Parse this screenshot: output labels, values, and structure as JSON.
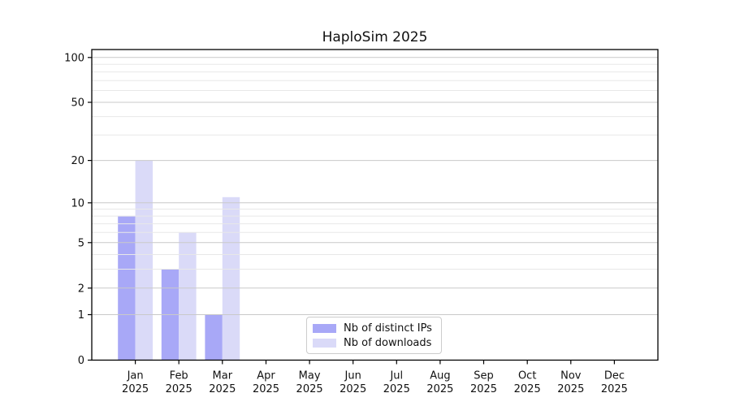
{
  "chart_data": {
    "type": "bar",
    "title": "HaploSim 2025",
    "categories": [
      "Jan",
      "Feb",
      "Mar",
      "Apr",
      "May",
      "Jun",
      "Jul",
      "Aug",
      "Sep",
      "Oct",
      "Nov",
      "Dec"
    ],
    "year": "2025",
    "series": [
      {
        "name": "Nb of distinct IPs",
        "color": "#a8a8f7",
        "values": [
          8,
          3,
          1,
          0,
          0,
          0,
          0,
          0,
          0,
          0,
          0,
          0
        ]
      },
      {
        "name": "Nb of downloads",
        "color": "#dadaf8",
        "values": [
          20,
          6,
          11,
          0,
          0,
          0,
          0,
          0,
          0,
          0,
          0,
          0
        ]
      }
    ],
    "y_scale": "log10(1+v)",
    "y_ticks": [
      0,
      1,
      2,
      5,
      10,
      20,
      50,
      100
    ],
    "y_tick_labels": [
      "0",
      "1",
      "2",
      "5",
      "10",
      "20",
      "50",
      "100"
    ],
    "y_minor_gridlines": [
      3,
      4,
      6,
      7,
      8,
      9,
      30,
      40,
      60,
      70,
      80,
      90
    ],
    "ylim": [
      0,
      113
    ],
    "xlabel": "",
    "ylabel": "",
    "grid": "horizontal, drawn above bars",
    "legend_position": "lower center",
    "colors": {
      "grid_major": "#c9c9c9",
      "grid_minor": "#e8e8e8",
      "axis": "#000000",
      "legend_border": "#cccccc",
      "background": "#ffffff"
    }
  }
}
